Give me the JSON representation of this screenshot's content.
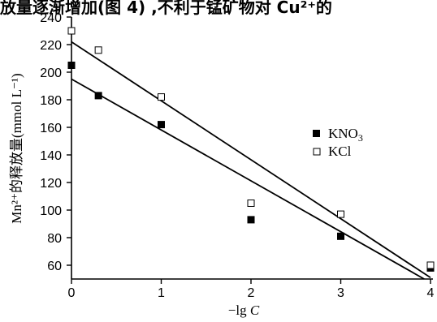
{
  "header_text": "放量逐渐增加(图 4) ,不利于锰矿物对 Cu²⁺的",
  "chart_data": {
    "type": "scatter",
    "title": "",
    "xlabel_prefix": "−lg ",
    "xlabel_var": "C",
    "ylabel": "Mn²⁺的释放量(mmol L⁻¹)",
    "xlim": [
      0,
      4
    ],
    "ylim": [
      50,
      240
    ],
    "x_ticks": [
      0,
      1,
      2,
      3,
      4
    ],
    "y_ticks": [
      60,
      80,
      100,
      120,
      140,
      160,
      180,
      200,
      220,
      240
    ],
    "grid": false,
    "legend_position": "right-middle",
    "series": [
      {
        "name": "KNO",
        "name_subscript": "3",
        "marker": "filled-square",
        "color": "#000000",
        "x": [
          0,
          0.3,
          1,
          2,
          3,
          4
        ],
        "y": [
          205,
          183,
          162,
          93,
          81,
          58
        ],
        "fit": {
          "x": [
            0,
            3.93
          ],
          "y": [
            195,
            50
          ]
        }
      },
      {
        "name": "KCl",
        "name_subscript": "",
        "marker": "open-square",
        "color": "#000000",
        "x": [
          0,
          0.3,
          1,
          2,
          3,
          4
        ],
        "y": [
          230,
          216,
          182,
          105,
          97,
          60
        ],
        "fit": {
          "x": [
            0,
            4.0
          ],
          "y": [
            222,
            51
          ]
        }
      }
    ]
  }
}
